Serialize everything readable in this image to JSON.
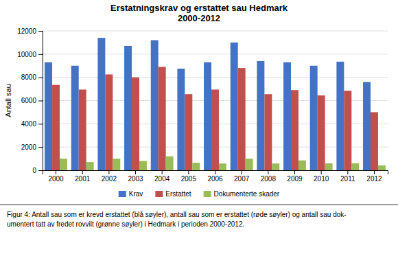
{
  "chart_data": {
    "type": "bar",
    "title": "Erstatningskrav og erstattet sau Hedmark\n2000-2012",
    "y_label": "Antall sau",
    "categories": [
      "2000",
      "2001",
      "2002",
      "2003",
      "2004",
      "2005",
      "2006",
      "2007",
      "2008",
      "2009",
      "2010",
      "2011",
      "2012"
    ],
    "series": [
      {
        "name": "Krav",
        "color": "#4472C4",
        "values": [
          9300,
          9000,
          11400,
          10700,
          11200,
          8750,
          9300,
          11000,
          9400,
          9300,
          9000,
          9350,
          7600
        ]
      },
      {
        "name": "Erstattet",
        "color": "#C0504D",
        "values": [
          7350,
          6950,
          8250,
          8000,
          8900,
          6550,
          6950,
          8800,
          6550,
          6900,
          6450,
          6850,
          5000
        ]
      },
      {
        "name": "Dokumenterte skader",
        "color": "#9BBB59",
        "values": [
          1000,
          700,
          1000,
          800,
          1200,
          650,
          580,
          1000,
          580,
          850,
          600,
          600,
          420
        ]
      }
    ],
    "ylim": [
      0,
      12000
    ],
    "yticks": [
      0,
      2000,
      4000,
      6000,
      8000,
      10000,
      12000
    ],
    "grid": true,
    "legend": "bottom",
    "caption": "Figur 4: Antall sau som er krevd erstattet (blå søyler), antall sau som er erstattet (røde søyler) og antall sau dok-\numentert tatt av fredet rovvilt (grønne søyler) i Hedmark i perioden 2000-2012."
  }
}
